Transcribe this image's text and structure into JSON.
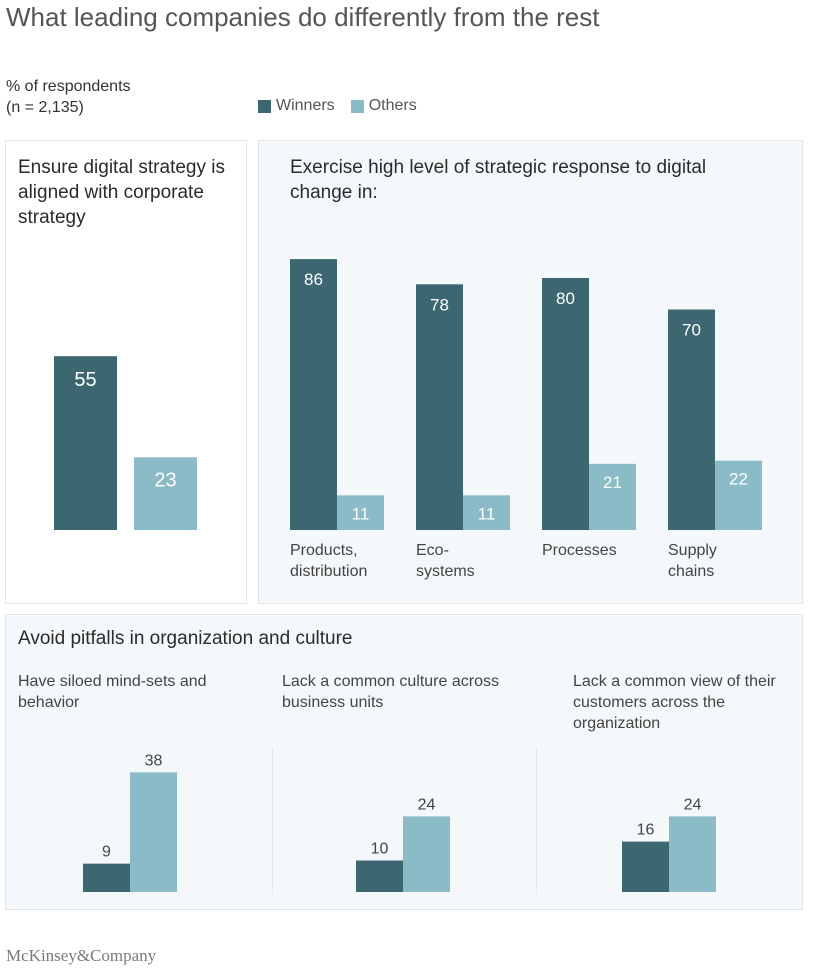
{
  "title": "What leading companies do differently from the rest",
  "unit_label": "% of respondents",
  "sample_label": "(n = 2,135)",
  "legend": [
    {
      "label": "Winners",
      "color": "#3c6670"
    },
    {
      "label": "Others",
      "color": "#8abbc6"
    }
  ],
  "panels": {
    "alignment": {
      "title": "Ensure digital strategy is aligned with corporate strategy"
    },
    "response": {
      "title": "Exercise high level of strategic response to digital change in:"
    },
    "pitfalls": {
      "title": "Avoid pitfalls in organization and culture",
      "subtitles": [
        "Have siloed mind-sets and behavior",
        "Lack a common culture across business units",
        "Lack a common view of their customers across the organization"
      ]
    }
  },
  "footer": "McKinsey&Company",
  "colors": {
    "winners": "#3c6670",
    "others": "#8abbc6"
  },
  "chart_data": [
    {
      "type": "bar",
      "title": "Ensure digital strategy is aligned with corporate strategy",
      "categories": [
        ""
      ],
      "series": [
        {
          "name": "Winners",
          "values": [
            55
          ]
        },
        {
          "name": "Others",
          "values": [
            23
          ]
        }
      ],
      "ylim": [
        0,
        100
      ]
    },
    {
      "type": "bar",
      "title": "Exercise high level of strategic response to digital change in:",
      "categories": [
        "Products, distribution",
        "Eco-systems",
        "Processes",
        "Supply chains"
      ],
      "series": [
        {
          "name": "Winners",
          "values": [
            86,
            78,
            80,
            70
          ]
        },
        {
          "name": "Others",
          "values": [
            11,
            11,
            21,
            22
          ]
        }
      ],
      "ylim": [
        0,
        100
      ]
    },
    {
      "type": "bar",
      "title": "Avoid pitfalls in organization and culture",
      "categories": [
        "Have siloed mind-sets and behavior",
        "Lack a common culture across business units",
        "Lack a common view of their customers across the organization"
      ],
      "series": [
        {
          "name": "Winners",
          "values": [
            9,
            10,
            16
          ]
        },
        {
          "name": "Others",
          "values": [
            38,
            24,
            24
          ]
        }
      ],
      "ylim": [
        0,
        40
      ]
    }
  ]
}
